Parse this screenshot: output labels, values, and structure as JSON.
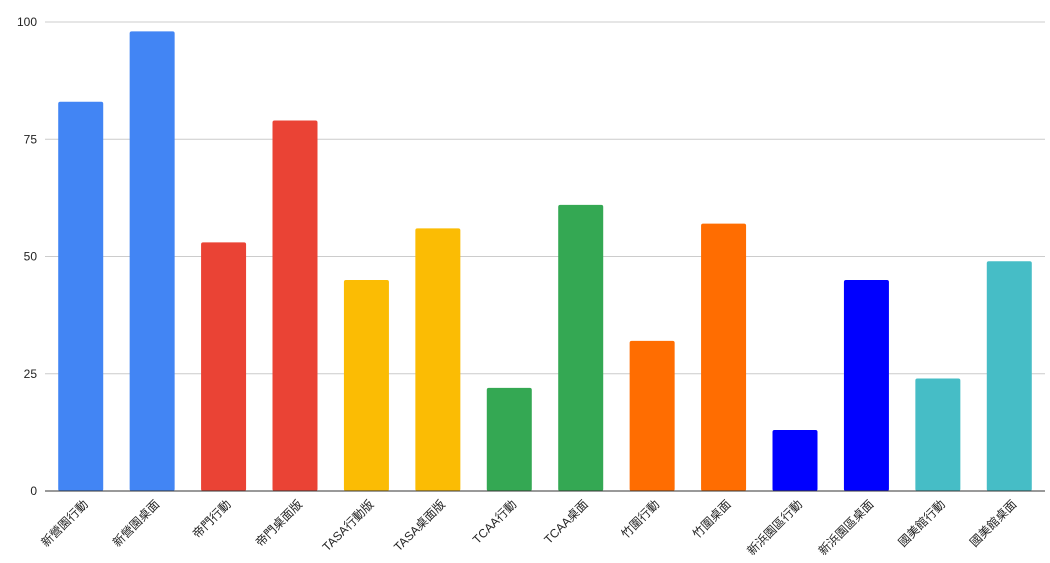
{
  "chart_data": {
    "type": "bar",
    "title": "",
    "xlabel": "",
    "ylabel": "",
    "ylim": [
      0,
      100
    ],
    "yticks": [
      0,
      25,
      50,
      75,
      100
    ],
    "grid": true,
    "legend": "none",
    "categories": [
      "新營園行動",
      "新營園桌面",
      "帝門行動",
      "帝門桌面版",
      "TASA行動版",
      "TASA桌面版",
      "TCAA行動",
      "TCAA桌面",
      "竹圍行動",
      "竹圍桌面",
      "新浜園區行動",
      "新浜園區桌面",
      "國美館行動",
      "國美館桌面"
    ],
    "values": [
      83,
      98,
      53,
      79,
      45,
      56,
      22,
      61,
      32,
      57,
      13,
      45,
      24,
      49
    ],
    "colors": [
      "#4285f4",
      "#4285f4",
      "#ea4335",
      "#ea4335",
      "#fbbc04",
      "#fbbc04",
      "#34a853",
      "#34a853",
      "#ff6d01",
      "#ff6d01",
      "#0000ff",
      "#0000ff",
      "#46bdc6",
      "#46bdc6"
    ]
  }
}
